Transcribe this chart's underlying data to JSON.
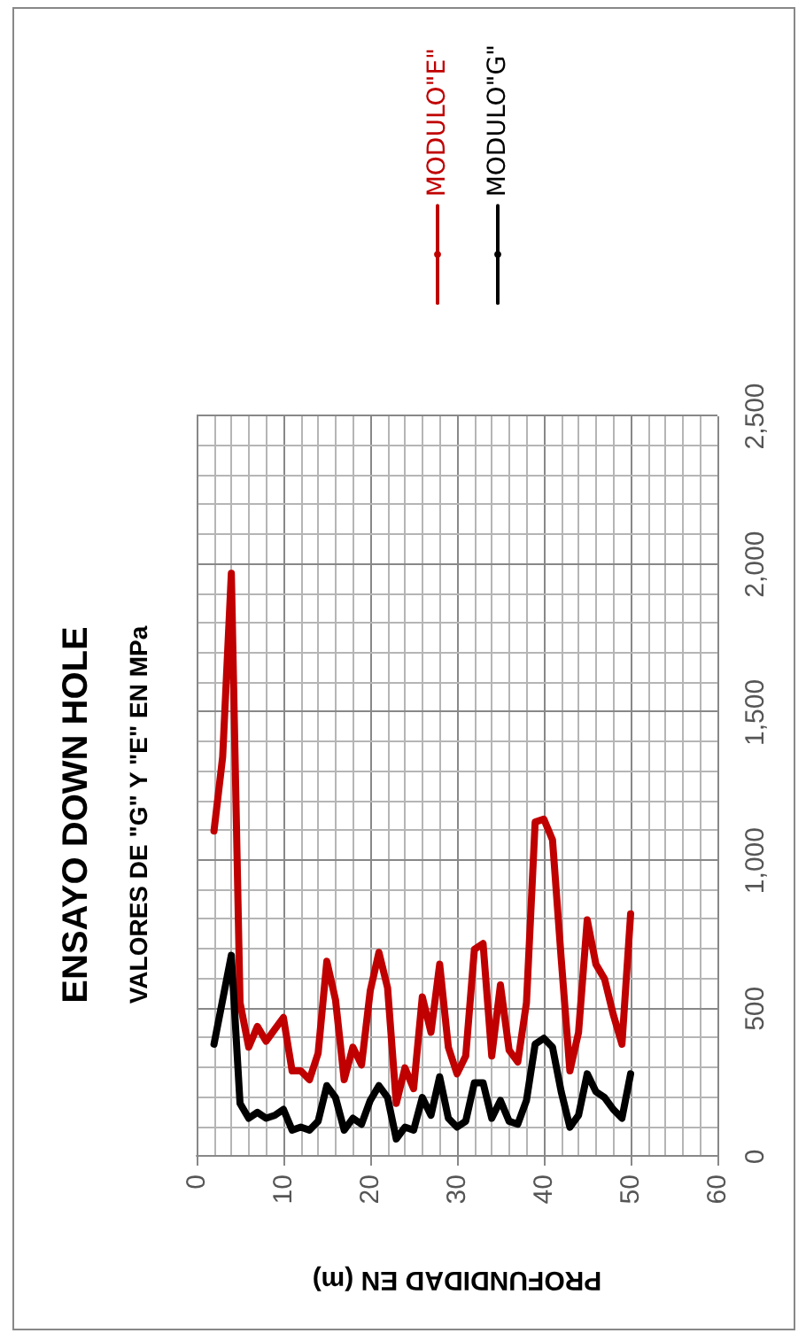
{
  "chart_data": {
    "type": "line",
    "title": "ENSAYO DOWN HOLE",
    "subtitle": "VALORES DE \"G\" Y \"E\" EN MPa",
    "xlabel": "PROFUNDIDAD EN (m)",
    "x": [
      2,
      3,
      4,
      5,
      6,
      7,
      8,
      9,
      10,
      11,
      12,
      13,
      14,
      15,
      16,
      17,
      18,
      19,
      20,
      21,
      22,
      23,
      24,
      25,
      26,
      27,
      28,
      29,
      30,
      31,
      32,
      33,
      34,
      35,
      36,
      37,
      38,
      39,
      40,
      41,
      42,
      43,
      44,
      45,
      46,
      47,
      48,
      49,
      50
    ],
    "series": [
      {
        "name": "MODULO\"E\"",
        "color": "#c00000",
        "values": [
          1100,
          1350,
          1970,
          520,
          370,
          440,
          390,
          430,
          470,
          290,
          290,
          260,
          350,
          660,
          530,
          260,
          370,
          310,
          560,
          690,
          570,
          180,
          300,
          230,
          540,
          420,
          650,
          370,
          280,
          340,
          700,
          720,
          340,
          580,
          360,
          320,
          520,
          1130,
          1140,
          1070,
          670,
          290,
          420,
          800,
          650,
          600,
          480,
          380,
          820
        ]
      },
      {
        "name": "MODULO\"G\"",
        "color": "#000000",
        "values": [
          380,
          530,
          680,
          180,
          130,
          150,
          130,
          140,
          160,
          90,
          100,
          90,
          120,
          240,
          200,
          90,
          130,
          110,
          190,
          240,
          200,
          60,
          100,
          90,
          200,
          140,
          270,
          130,
          100,
          120,
          250,
          250,
          130,
          190,
          120,
          110,
          190,
          380,
          400,
          370,
          220,
          100,
          140,
          280,
          220,
          200,
          160,
          130,
          280
        ]
      }
    ],
    "xlim": [
      0,
      60
    ],
    "xticks": [
      0,
      10,
      20,
      30,
      40,
      50,
      60
    ],
    "ylim": [
      0,
      2500
    ],
    "yticks": [
      0,
      500,
      {
        "value": 1000,
        "label": "1,000"
      },
      {
        "value": 1500,
        "label": "1,500"
      },
      {
        "value": 2000,
        "label": "2,000"
      },
      {
        "value": 2500,
        "label": "2,500"
      }
    ],
    "grid": true,
    "legend": "top right",
    "marker": "none",
    "line_style": "solid"
  }
}
